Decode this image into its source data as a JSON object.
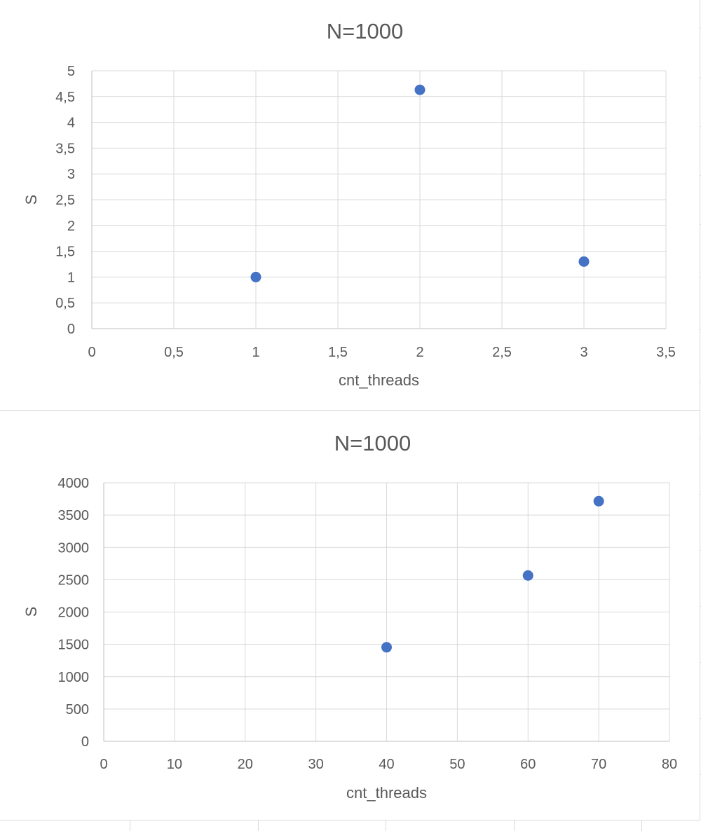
{
  "chart_data": [
    {
      "type": "scatter",
      "title": "N=1000",
      "xlabel": "cnt_threads",
      "ylabel": "S",
      "xlim": [
        0,
        3.5
      ],
      "ylim": [
        0,
        5
      ],
      "x_ticks": [
        "0",
        "0,5",
        "1",
        "1,5",
        "2",
        "2,5",
        "3",
        "3,5"
      ],
      "y_ticks": [
        "0",
        "0,5",
        "1",
        "1,5",
        "2",
        "2,5",
        "3",
        "3,5",
        "4",
        "4,5",
        "5"
      ],
      "x_tick_values": [
        0,
        0.5,
        1,
        1.5,
        2,
        2.5,
        3,
        3.5
      ],
      "y_tick_values": [
        0,
        0.5,
        1,
        1.5,
        2,
        2.5,
        3,
        3.5,
        4,
        4.5,
        5
      ],
      "grid": true,
      "legend": "none",
      "series": [
        {
          "x": [
            1,
            2,
            3
          ],
          "y": [
            1,
            4.63,
            1.3
          ]
        }
      ]
    },
    {
      "type": "scatter",
      "title": "N=1000",
      "xlabel": "cnt_threads",
      "ylabel": "S",
      "xlim": [
        0,
        80
      ],
      "ylim": [
        0,
        4000
      ],
      "x_ticks": [
        "0",
        "10",
        "20",
        "30",
        "40",
        "50",
        "60",
        "70",
        "80"
      ],
      "y_ticks": [
        "0",
        "500",
        "1000",
        "1500",
        "2000",
        "2500",
        "3000",
        "3500",
        "4000"
      ],
      "x_tick_values": [
        0,
        10,
        20,
        30,
        40,
        50,
        60,
        70,
        80
      ],
      "y_tick_values": [
        0,
        500,
        1000,
        1500,
        2000,
        2500,
        3000,
        3500,
        4000
      ],
      "grid": true,
      "legend": "none",
      "series": [
        {
          "x": [
            40,
            60,
            70
          ],
          "y": [
            1455,
            2565,
            3715
          ]
        }
      ]
    }
  ],
  "colors": {
    "marker": "#4472C4",
    "grid": "#d9d9d9",
    "axis": "#bfbfbf",
    "text": "#595959"
  }
}
